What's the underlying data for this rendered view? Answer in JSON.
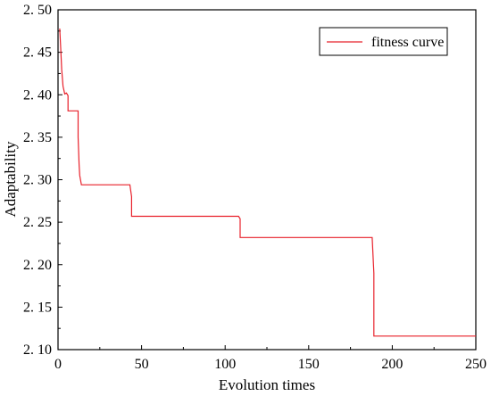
{
  "chart_data": {
    "type": "line",
    "title": "",
    "xlabel": "Evolution times",
    "ylabel": "Adaptability",
    "xlim": [
      0,
      250
    ],
    "ylim": [
      2.1,
      2.5
    ],
    "xticks": [
      "0",
      "50",
      "100",
      "150",
      "200",
      "250"
    ],
    "yticks": [
      "2. 10",
      "2. 15",
      "2. 20",
      "2. 25",
      "2. 30",
      "2. 35",
      "2. 40",
      "2. 45",
      "2. 50"
    ],
    "grid": false,
    "legend_position": "top-right",
    "series": [
      {
        "name": "fitness curve",
        "color": "#e8202a",
        "x": [
          1,
          1.6,
          2.2,
          3,
          4,
          5,
          6,
          6,
          7,
          12,
          12,
          12.6,
          13,
          14,
          14,
          43,
          44,
          44,
          108,
          109,
          109,
          188,
          189,
          189,
          250
        ],
        "y": [
          2.478,
          2.455,
          2.43,
          2.41,
          2.401,
          2.402,
          2.399,
          2.381,
          2.381,
          2.381,
          2.35,
          2.318,
          2.305,
          2.294,
          2.294,
          2.294,
          2.28,
          2.257,
          2.257,
          2.254,
          2.232,
          2.232,
          2.19,
          2.116,
          2.116
        ]
      }
    ]
  }
}
